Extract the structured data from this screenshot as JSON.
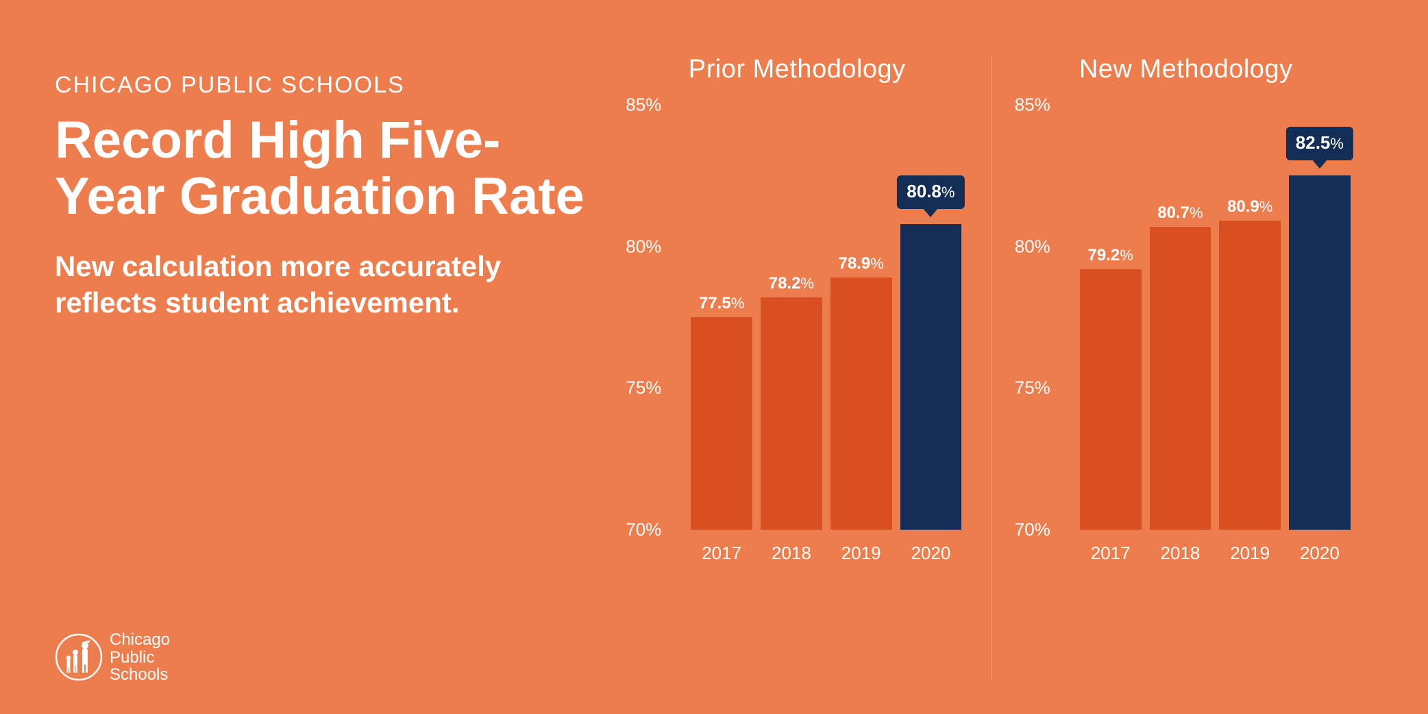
{
  "colors": {
    "background": "#ee7d4d",
    "text": "#ffffff",
    "bar_regular": "#d84f21",
    "bar_highlight": "#132d54",
    "badge_bg": "#132d54",
    "badge_text": "#ffffff",
    "divider": "rgba(255,255,255,0.35)"
  },
  "pretitle": "CHICAGO PUBLIC SCHOOLS",
  "title": "Record High Five-Year Graduation Rate",
  "subtitle": "New calculation more accurately reflects student achievement.",
  "logo_text_lines": [
    "Chicago",
    "Public",
    "Schools"
  ],
  "y_axis": {
    "min": 70,
    "max": 85,
    "step": 5,
    "label_suffix": "%"
  },
  "charts": [
    {
      "title": "Prior Methodology",
      "bars": [
        {
          "category": "2017",
          "value": 77.5,
          "highlight": false
        },
        {
          "category": "2018",
          "value": 78.2,
          "highlight": false
        },
        {
          "category": "2019",
          "value": 78.9,
          "highlight": false
        },
        {
          "category": "2020",
          "value": 80.8,
          "highlight": true
        }
      ]
    },
    {
      "title": "New Methodology",
      "bars": [
        {
          "category": "2017",
          "value": 79.2,
          "highlight": false
        },
        {
          "category": "2018",
          "value": 80.7,
          "highlight": false
        },
        {
          "category": "2019",
          "value": 80.9,
          "highlight": false
        },
        {
          "category": "2020",
          "value": 82.5,
          "highlight": true
        }
      ]
    }
  ]
}
